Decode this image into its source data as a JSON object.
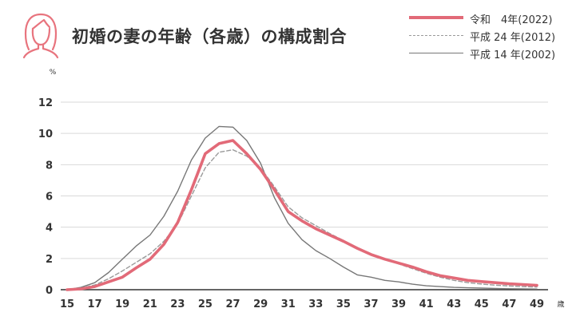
{
  "header": {
    "title": "初婚の妻の年齢（各歳）の構成割合",
    "icon": "woman-face-icon",
    "icon_color": "#e8747e"
  },
  "chart_data": {
    "type": "line",
    "title": "初婚の妻の年齢（各歳）の構成割合",
    "ylabel": "%",
    "xlabel": "歳",
    "x": [
      15,
      16,
      17,
      18,
      19,
      20,
      21,
      22,
      23,
      24,
      25,
      26,
      27,
      28,
      29,
      30,
      31,
      32,
      33,
      34,
      35,
      36,
      37,
      38,
      39,
      40,
      41,
      42,
      43,
      44,
      45,
      46,
      47,
      48,
      49
    ],
    "ylim": [
      0,
      12
    ],
    "xlim": [
      15,
      49
    ],
    "yticks": [
      0,
      2,
      4,
      6,
      8,
      10,
      12
    ],
    "xticks": [
      15,
      17,
      19,
      21,
      23,
      25,
      27,
      29,
      31,
      33,
      35,
      37,
      39,
      41,
      43,
      45,
      47,
      49
    ],
    "grid": "horizontal",
    "legend_position": "top-right",
    "series": [
      {
        "name": "令和　4年(2022)",
        "color": "#e26a78",
        "style": "solid-thick",
        "values": [
          0.0,
          0.05,
          0.2,
          0.5,
          0.8,
          1.4,
          1.95,
          2.9,
          4.3,
          6.4,
          8.7,
          9.35,
          9.55,
          8.7,
          7.7,
          6.4,
          5.0,
          4.4,
          3.9,
          3.5,
          3.1,
          2.65,
          2.25,
          1.95,
          1.7,
          1.45,
          1.15,
          0.9,
          0.75,
          0.6,
          0.52,
          0.45,
          0.38,
          0.33,
          0.28
        ]
      },
      {
        "name": "平成 24 年(2012)",
        "color": "#9a9a9a",
        "style": "dashed",
        "values": [
          0.0,
          0.1,
          0.3,
          0.7,
          1.2,
          1.75,
          2.3,
          3.1,
          4.2,
          6.0,
          7.8,
          8.8,
          8.95,
          8.55,
          7.8,
          6.6,
          5.3,
          4.6,
          4.1,
          3.6,
          3.15,
          2.7,
          2.25,
          1.95,
          1.65,
          1.35,
          1.05,
          0.8,
          0.6,
          0.45,
          0.36,
          0.29,
          0.24,
          0.2,
          0.17
        ]
      },
      {
        "name": "平成 14 年(2002)",
        "color": "#777777",
        "style": "solid-thin",
        "values": [
          0.0,
          0.15,
          0.45,
          1.1,
          1.95,
          2.8,
          3.5,
          4.7,
          6.3,
          8.3,
          9.7,
          10.45,
          10.4,
          9.55,
          8.1,
          5.9,
          4.25,
          3.2,
          2.5,
          2.0,
          1.45,
          0.95,
          0.8,
          0.6,
          0.5,
          0.35,
          0.25,
          0.2,
          0.15,
          0.12,
          0.1,
          0.08,
          0.06,
          0.05,
          0.04
        ]
      }
    ]
  }
}
